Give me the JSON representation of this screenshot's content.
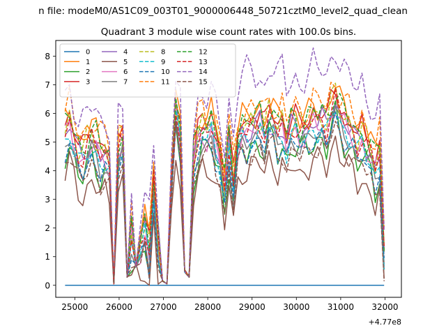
{
  "chart_data": {
    "type": "line",
    "suptitle": "n file: modeM0/AS1C09_003T01_9000006448_50721cztM0_level2_quad_clean",
    "title": "Quadrant 3 module wise count rates with 100.0s bins.",
    "xlabel": "",
    "ylabel": "",
    "x_offset_label": "+4.77e8",
    "xlim": [
      24570,
      32370
    ],
    "ylim": [
      -0.42,
      8.55
    ],
    "x_ticks": [
      25000,
      26000,
      27000,
      28000,
      29000,
      30000,
      31000,
      32000
    ],
    "x_tick_labels": [
      "25000",
      "26000",
      "27000",
      "28000",
      "29000",
      "30000",
      "31000",
      "32000"
    ],
    "y_ticks": [
      0,
      1,
      2,
      3,
      4,
      5,
      6,
      7,
      8
    ],
    "y_tick_labels": [
      "0",
      "1",
      "2",
      "3",
      "4",
      "5",
      "6",
      "7",
      "8"
    ],
    "grid": false,
    "legend": {
      "placement": "top-left",
      "columns": 4
    },
    "x_start": 24780,
    "x_step": 100,
    "colors": [
      "#1f77b4",
      "#ff7f0e",
      "#2ca02c",
      "#d62728",
      "#9467bd",
      "#8c564b",
      "#e377c2",
      "#7f7f7f",
      "#bcbd22",
      "#17becf",
      "#1f77b4",
      "#ff7f0e",
      "#2ca02c",
      "#d62728",
      "#9467bd",
      "#8c564b"
    ],
    "series": [
      {
        "name": "0",
        "style": "solid",
        "values": []
      },
      {
        "name": "1",
        "style": "solid",
        "values": []
      },
      {
        "name": "2",
        "style": "solid",
        "values": []
      },
      {
        "name": "3",
        "style": "solid",
        "values": []
      },
      {
        "name": "4",
        "style": "solid",
        "values": []
      },
      {
        "name": "5",
        "style": "solid",
        "values": []
      },
      {
        "name": "6",
        "style": "solid",
        "values": []
      },
      {
        "name": "7",
        "style": "solid",
        "values": []
      },
      {
        "name": "8",
        "style": "dashed",
        "values": []
      },
      {
        "name": "9",
        "style": "dashed",
        "values": []
      },
      {
        "name": "10",
        "style": "dashed",
        "values": []
      },
      {
        "name": "11",
        "style": "dashed",
        "values": []
      },
      {
        "name": "12",
        "style": "dashed",
        "values": []
      },
      {
        "name": "13",
        "style": "dashed",
        "values": []
      },
      {
        "name": "14",
        "style": "dashed",
        "values": []
      },
      {
        "name": "15",
        "style": "dashed",
        "values": []
      }
    ]
  }
}
